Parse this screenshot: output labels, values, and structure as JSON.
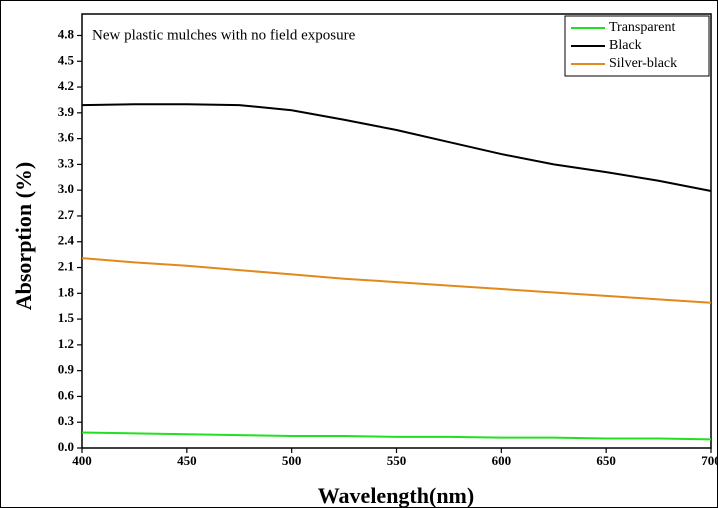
{
  "chart_data": {
    "type": "line",
    "annotation": "New plastic mulches with no field exposure",
    "x_label": "Wavelength(nm)",
    "y_label": "Absorption (%)",
    "x": [
      400,
      425,
      450,
      475,
      500,
      525,
      550,
      575,
      600,
      625,
      650,
      675,
      700
    ],
    "series": [
      {
        "name": "Transparent",
        "color": "#22e01e",
        "values": [
          0.18,
          0.17,
          0.16,
          0.15,
          0.14,
          0.14,
          0.13,
          0.13,
          0.12,
          0.12,
          0.11,
          0.11,
          0.1
        ]
      },
      {
        "name": "Black",
        "color": "#000000",
        "values": [
          3.99,
          4.0,
          4.0,
          3.99,
          3.93,
          3.82,
          3.7,
          3.56,
          3.42,
          3.3,
          3.21,
          3.11,
          2.99
        ]
      },
      {
        "name": "Silver-black",
        "color": "#e08a1e",
        "values": [
          2.21,
          2.16,
          2.12,
          2.07,
          2.02,
          1.97,
          1.93,
          1.89,
          1.85,
          1.81,
          1.77,
          1.73,
          1.69
        ]
      }
    ],
    "xlim": [
      400,
      700
    ],
    "xticks": [
      400,
      450,
      500,
      550,
      600,
      650,
      700
    ],
    "ylim": [
      0,
      5.05
    ],
    "yticks": [
      {
        "value": 0,
        "label": "0.0"
      },
      0.3,
      0.6,
      0.9,
      1.2,
      1.5,
      1.8,
      2.1,
      2.4,
      2.7,
      {
        "value": 3,
        "label": "3.0"
      },
      3.3,
      3.6,
      3.9,
      4.2,
      4.5,
      4.8
    ],
    "legend": "upper right",
    "grid": false
  }
}
